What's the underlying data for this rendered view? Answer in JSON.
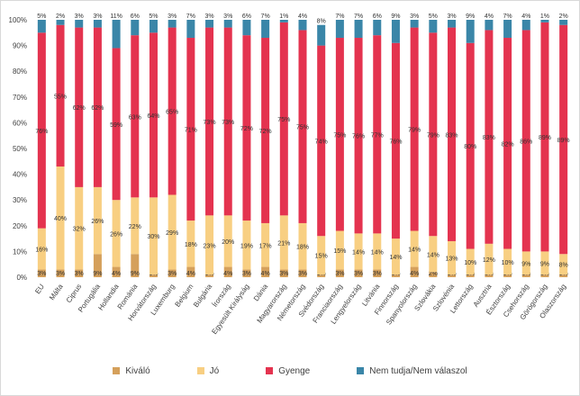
{
  "chart_data": {
    "type": "bar",
    "stacked": true,
    "ylim": [
      0,
      100
    ],
    "yticks": [
      "0%",
      "10%",
      "20%",
      "30%",
      "40%",
      "50%",
      "60%",
      "70%",
      "80%",
      "90%",
      "100%"
    ],
    "grid": false,
    "legend_position": "bottom",
    "categories": [
      "EU",
      "Málta",
      "Ciprus",
      "Portugália",
      "Hollandia",
      "Románia",
      "Horvátország",
      "Luxemburg",
      "Belgium",
      "Bulgária",
      "Írország",
      "Egyesült Királyság",
      "Dánia",
      "Magyarország",
      "Németország",
      "Svédország",
      "Franciaország",
      "Lengyelország",
      "Litvánia",
      "Finnország",
      "Spanyolország",
      "Szlovákia",
      "Szlovénia",
      "Lettország",
      "Ausztria",
      "Észtország",
      "Csehország",
      "Görögország",
      "Olaszország"
    ],
    "series": [
      {
        "name": "Kiváló",
        "color": "#d5a05b",
        "values": [
          3,
          3,
          3,
          9,
          4,
          9,
          1,
          3,
          4,
          1,
          4,
          3,
          4,
          3,
          3,
          1,
          3,
          3,
          3,
          1,
          4,
          2,
          1,
          1,
          1,
          1,
          1,
          1,
          1
        ]
      },
      {
        "name": "Jó",
        "color": "#f8cf82",
        "values": [
          16,
          40,
          32,
          26,
          26,
          22,
          30,
          29,
          18,
          23,
          20,
          19,
          17,
          21,
          18,
          15,
          15,
          14,
          14,
          14,
          14,
          14,
          13,
          10,
          12,
          10,
          9,
          9,
          8
        ]
      },
      {
        "name": "Gyenge",
        "color": "#e4334f",
        "values": [
          76,
          55,
          62,
          62,
          59,
          63,
          64,
          65,
          71,
          73,
          73,
          72,
          72,
          75,
          75,
          74,
          75,
          76,
          77,
          76,
          79,
          79,
          83,
          80,
          83,
          82,
          86,
          89,
          89
        ]
      },
      {
        "name": "Nem tudja/Nem válaszol",
        "color": "#3a86a8",
        "values": [
          5,
          2,
          3,
          3,
          11,
          6,
          5,
          3,
          7,
          3,
          3,
          6,
          7,
          1,
          4,
          8,
          7,
          7,
          6,
          9,
          3,
          5,
          3,
          9,
          4,
          7,
          4,
          1,
          2
        ]
      }
    ]
  }
}
